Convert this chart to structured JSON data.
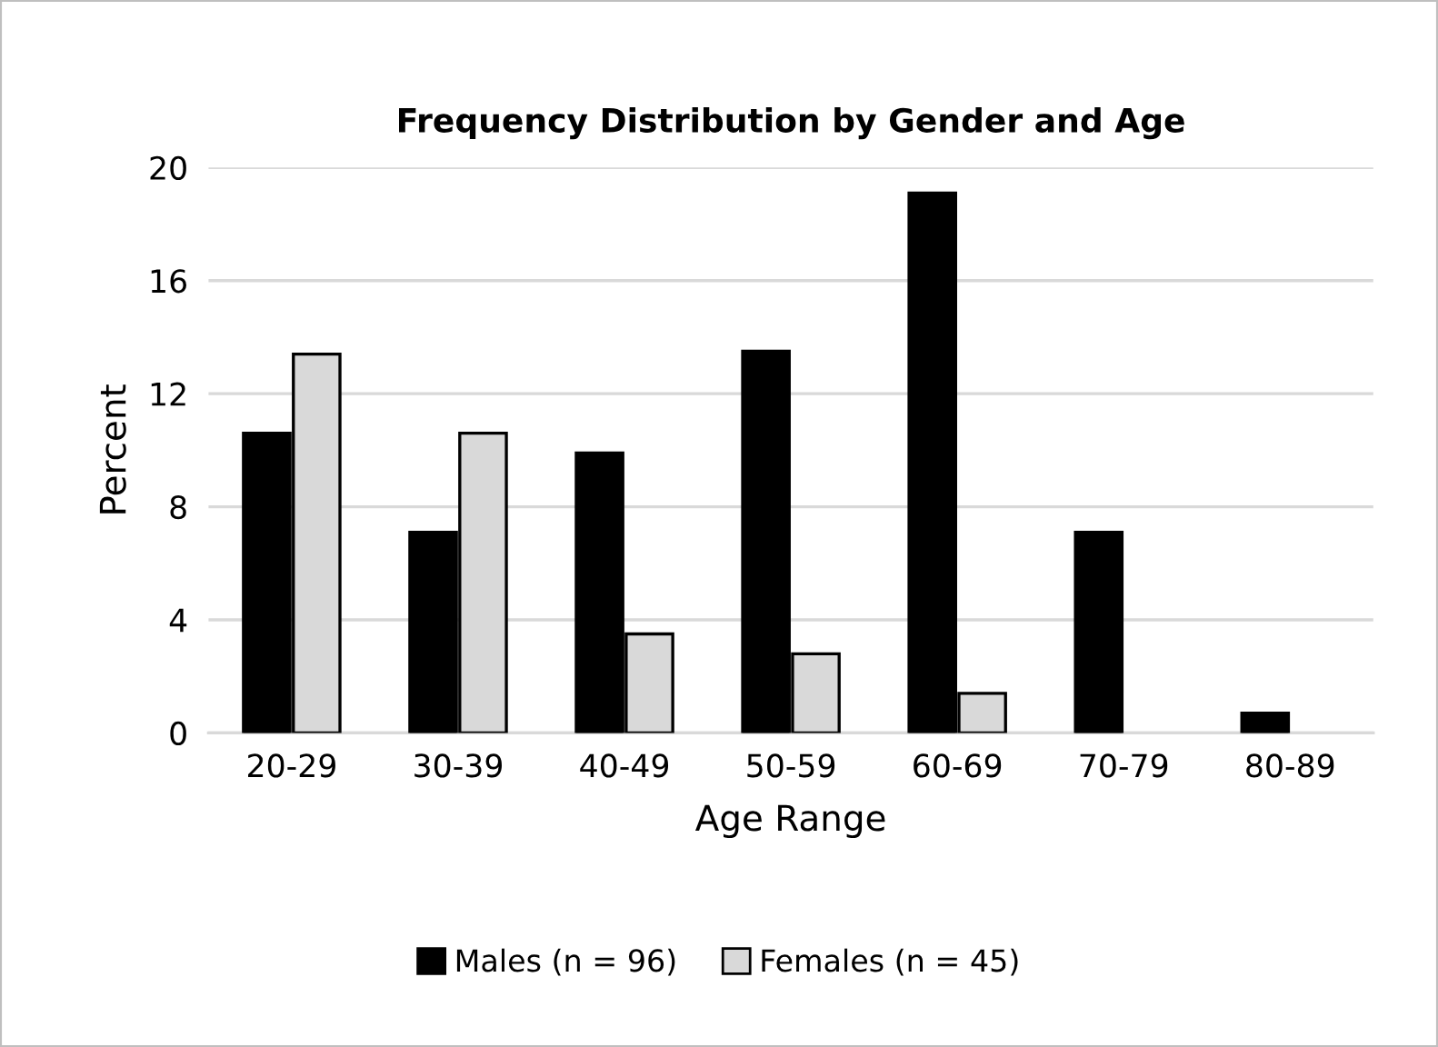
{
  "chart_data": {
    "type": "bar",
    "title": "Frequency Distribution by Gender and Age",
    "xlabel": "Age Range",
    "ylabel": "Percent",
    "categories": [
      "20-29",
      "30-39",
      "40-49",
      "50-59",
      "60-69",
      "70-79",
      "80-89"
    ],
    "series": [
      {
        "name": "Males (n = 96)",
        "color": "#000000",
        "values": [
          10.6,
          7.1,
          9.9,
          13.5,
          19.1,
          7.1,
          0.7
        ]
      },
      {
        "name": "Females (n = 45)",
        "color": "#d9d9d9",
        "values": [
          13.4,
          10.6,
          3.5,
          2.8,
          1.4,
          null,
          null
        ]
      }
    ],
    "ylim": [
      0,
      20
    ],
    "yticks": [
      0,
      4,
      8,
      12,
      16,
      20
    ],
    "grid": "y",
    "legend": "bottom"
  }
}
